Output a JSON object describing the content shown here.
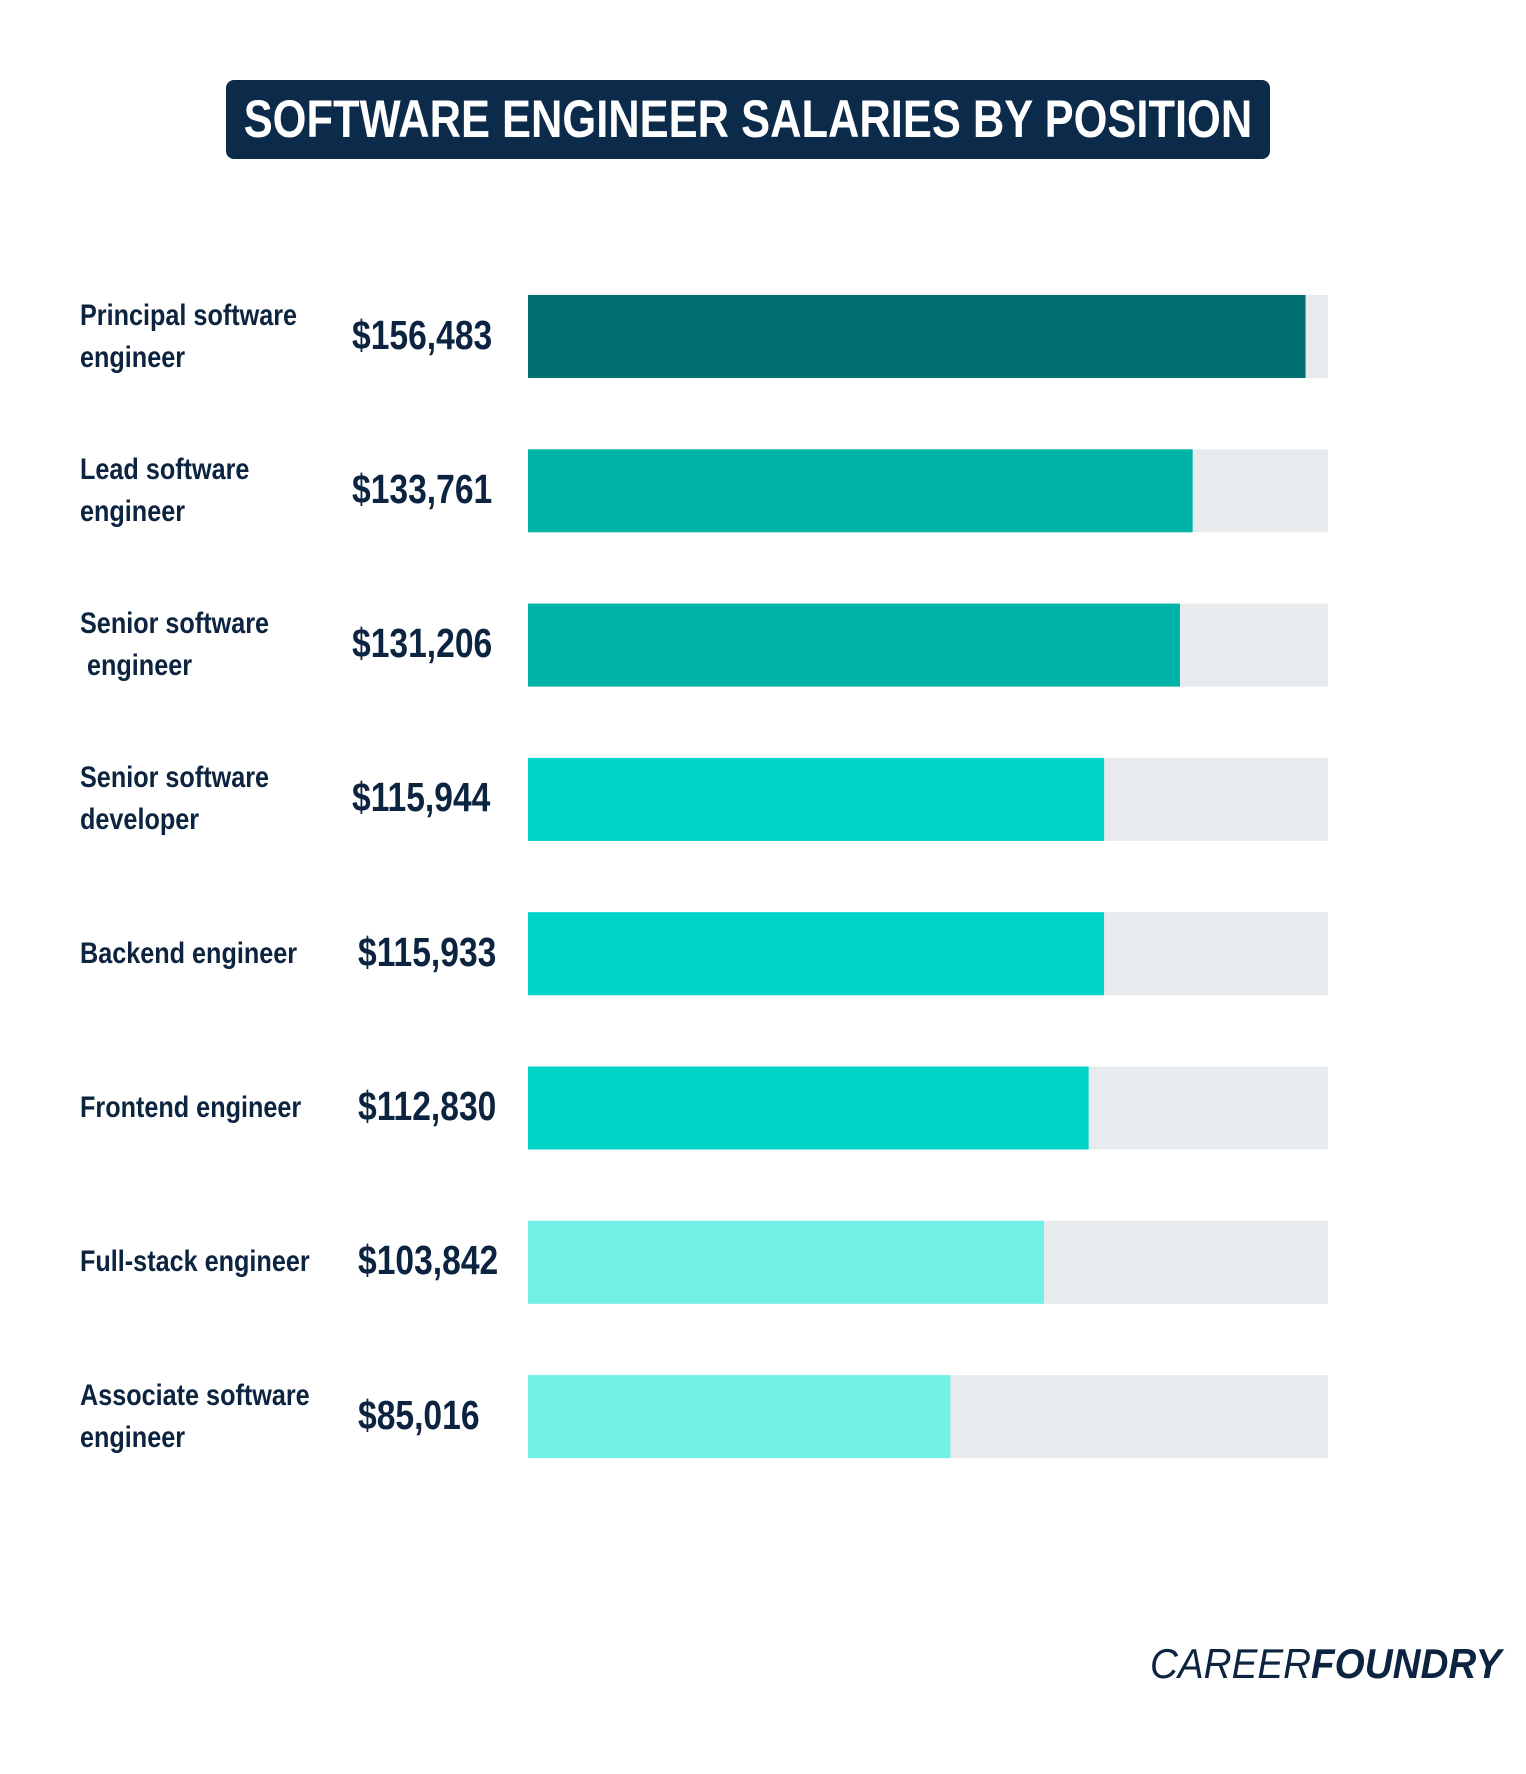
{
  "title": "SOFTWARE ENGINEER SALARIES BY POSITION",
  "logo": {
    "light": "CAREER",
    "heavy": "FOUNDRY"
  },
  "chart_data": {
    "type": "bar",
    "orientation": "horizontal",
    "title": "SOFTWARE ENGINEER SALARIES BY POSITION",
    "xlabel": "",
    "ylabel": "",
    "grid": false,
    "xlim": [
      0,
      161000
    ],
    "track_color": "#e8ebee",
    "categories": [
      "Principal software\nengineer",
      "Lead software\nengineer",
      "Senior software\n engineer",
      "Senior software\ndeveloper",
      "Backend engineer",
      "Frontend engineer",
      "Full-stack engineer",
      "Associate software\nengineer"
    ],
    "values": [
      156483,
      133761,
      131206,
      115944,
      115933,
      112830,
      103842,
      85016
    ],
    "value_labels": [
      "$156,483",
      "$133,761",
      "$131,206",
      "$115,944",
      "$115,933",
      "$112,830",
      "$103,842",
      "$85,016"
    ],
    "colors": [
      "#007070",
      "#00b3a9",
      "#00b3a9",
      "#00d4c8",
      "#00d4c8",
      "#00d4c8",
      "#72f0e6",
      "#72f0e6"
    ]
  }
}
